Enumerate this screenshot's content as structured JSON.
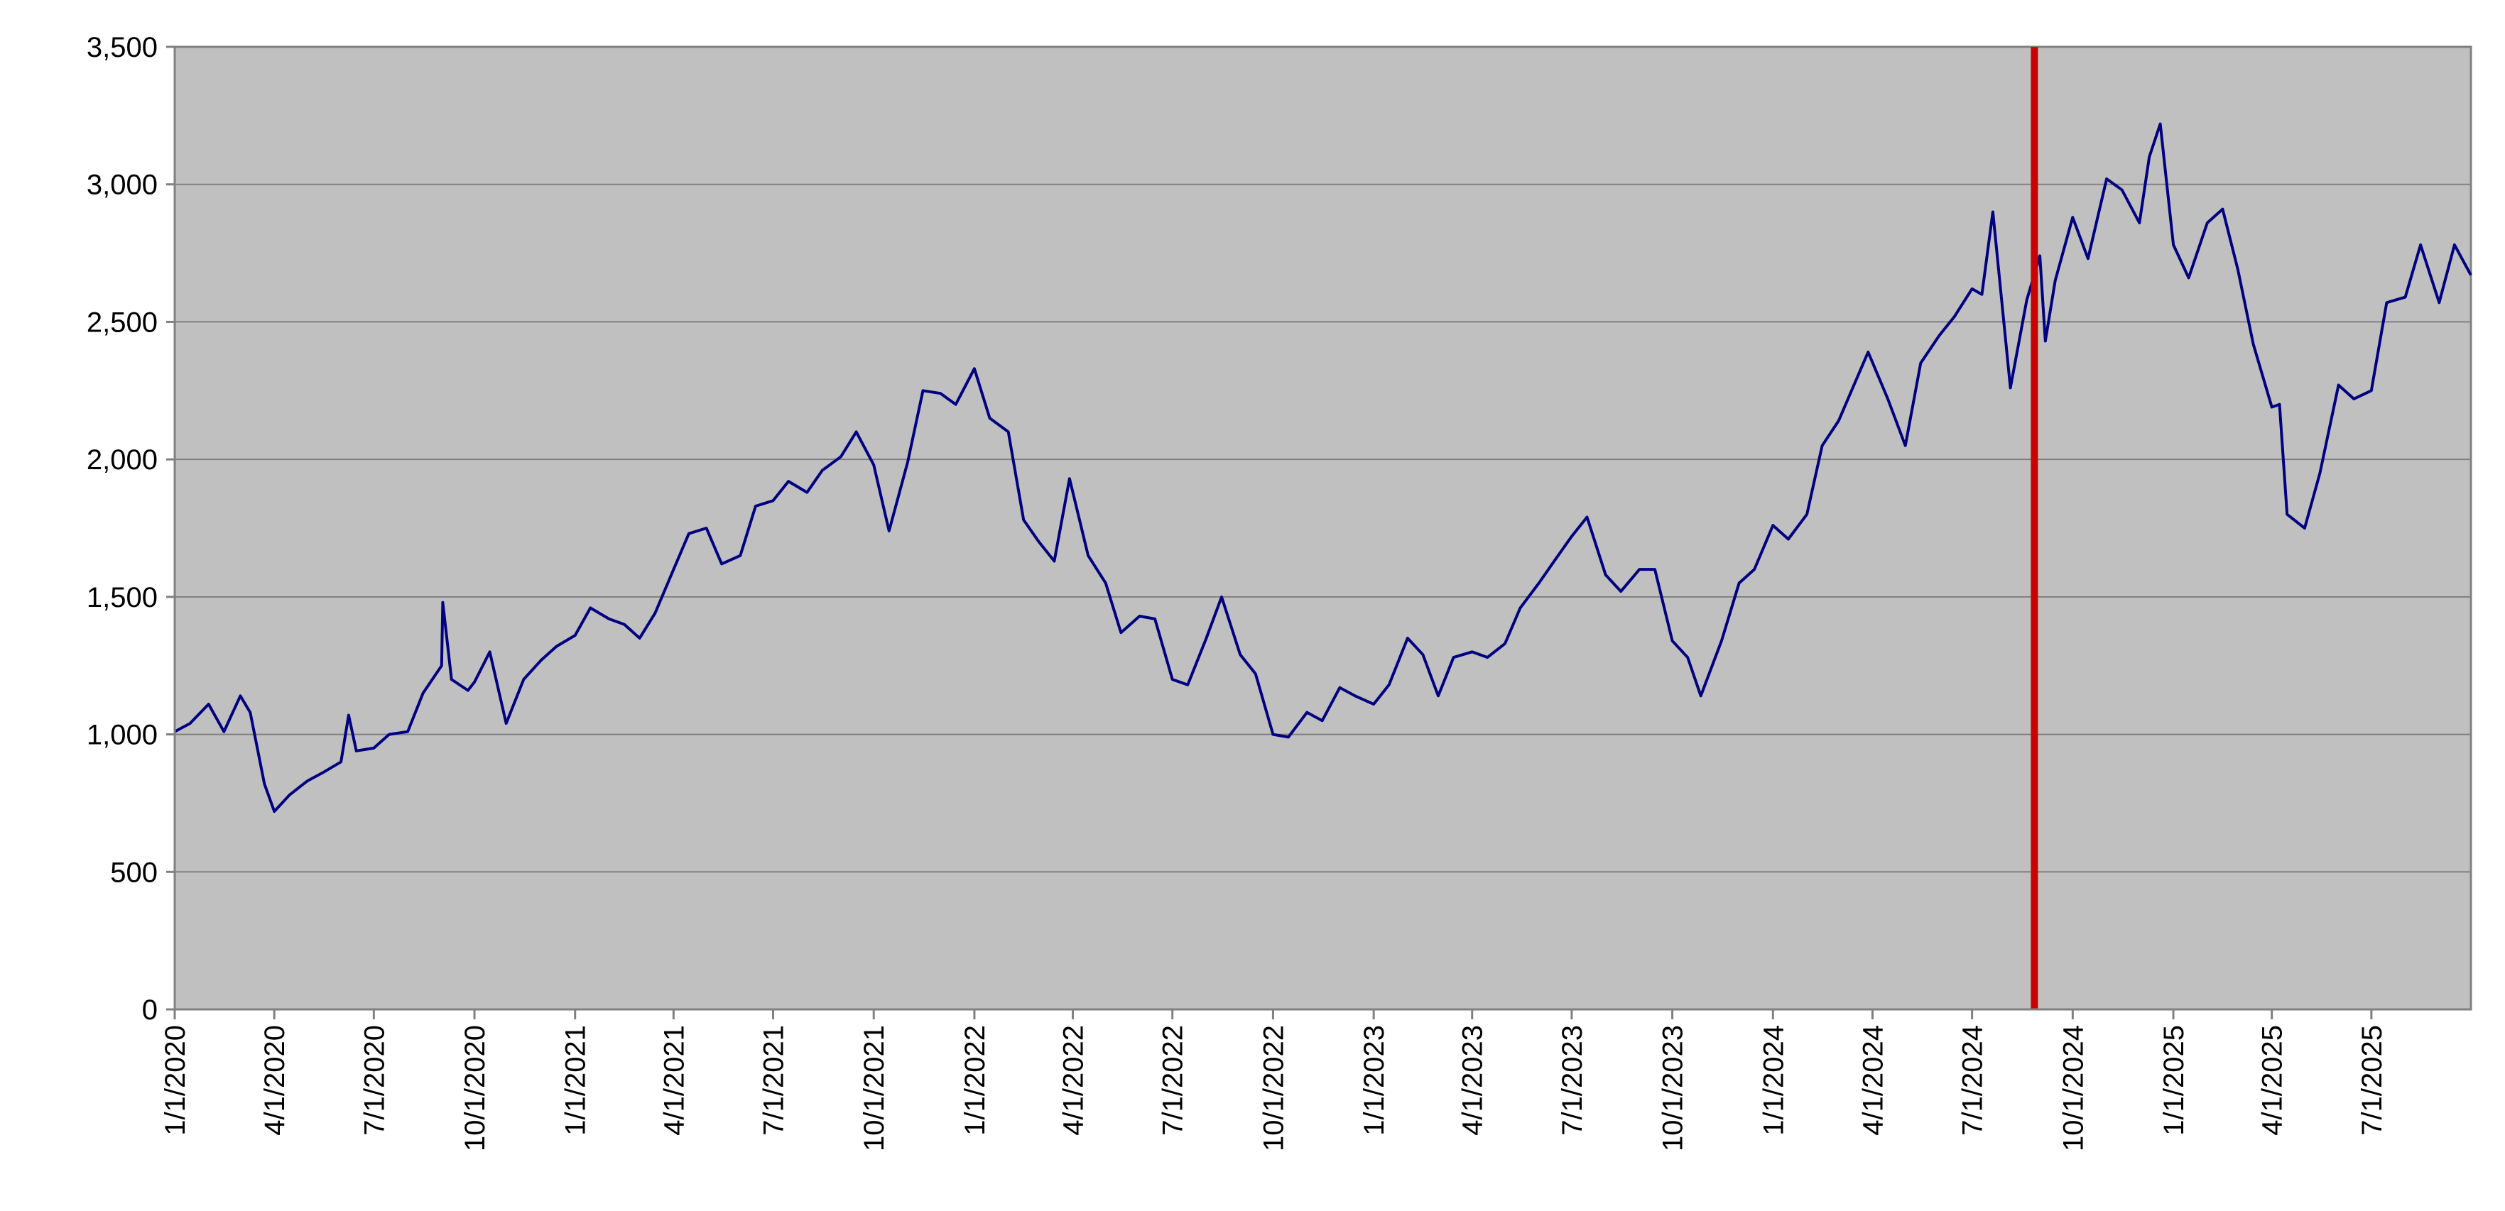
{
  "chart_data": {
    "type": "line",
    "title": "",
    "xlabel": "",
    "ylabel": "",
    "grid": true,
    "legend": "none",
    "xlim": [
      "2020-01-01",
      "2025-09-30"
    ],
    "ylim": [
      0,
      3500
    ],
    "y_ticks": [
      0,
      500,
      1000,
      1500,
      2000,
      2500,
      3000,
      3500
    ],
    "y_tick_labels": [
      "0",
      "500",
      "1,000",
      "1,500",
      "2,000",
      "2,500",
      "3,000",
      "3,500"
    ],
    "x_ticks": [
      "2020-01-01",
      "2020-04-01",
      "2020-07-01",
      "2020-10-01",
      "2021-01-01",
      "2021-04-01",
      "2021-07-01",
      "2021-10-01",
      "2022-01-01",
      "2022-04-01",
      "2022-07-01",
      "2022-10-01",
      "2023-01-01",
      "2023-04-01",
      "2023-07-01",
      "2023-10-01",
      "2024-01-01",
      "2024-04-01",
      "2024-07-01",
      "2024-10-01",
      "2025-01-01",
      "2025-04-01",
      "2025-07-01"
    ],
    "x_tick_labels": [
      "1/1/2020",
      "4/1/2020",
      "7/1/2020",
      "10/1/2020",
      "1/1/2021",
      "4/1/2021",
      "7/1/2021",
      "10/1/2021",
      "1/1/2022",
      "4/1/2022",
      "7/1/2022",
      "10/1/2022",
      "1/1/2023",
      "4/1/2023",
      "7/1/2023",
      "10/1/2023",
      "1/1/2024",
      "4/1/2024",
      "7/1/2024",
      "10/1/2024",
      "1/1/2025",
      "4/1/2025",
      "7/1/2025"
    ],
    "colors": {
      "plot_background": "#c0c0c0",
      "line": "#000080",
      "marker_line": "#cc0000",
      "grid": "#808080"
    },
    "vertical_marker": {
      "x": "2024-08-27"
    },
    "series": [
      {
        "x": [
          "2020-01-01",
          "2020-01-15",
          "2020-02-01",
          "2020-02-15",
          "2020-03-01",
          "2020-03-10",
          "2020-03-23",
          "2020-04-01",
          "2020-04-15",
          "2020-05-01",
          "2020-05-15",
          "2020-06-01",
          "2020-06-08",
          "2020-06-15",
          "2020-07-01",
          "2020-07-15",
          "2020-08-01",
          "2020-08-15",
          "2020-09-01",
          "2020-09-02",
          "2020-09-10",
          "2020-09-25",
          "2020-10-01",
          "2020-10-15",
          "2020-10-30",
          "2020-11-15",
          "2020-12-01",
          "2020-12-15",
          "2021-01-01",
          "2021-01-15",
          "2021-02-01",
          "2021-02-15",
          "2021-03-01",
          "2021-03-15",
          "2021-04-01",
          "2021-04-15",
          "2021-05-01",
          "2021-05-15",
          "2021-06-01",
          "2021-06-15",
          "2021-07-01",
          "2021-07-15",
          "2021-08-01",
          "2021-08-15",
          "2021-09-01",
          "2021-09-15",
          "2021-10-01",
          "2021-10-15",
          "2021-11-01",
          "2021-11-15",
          "2021-12-01",
          "2021-12-15",
          "2022-01-01",
          "2022-01-15",
          "2022-02-01",
          "2022-02-15",
          "2022-03-01",
          "2022-03-15",
          "2022-03-29",
          "2022-04-15",
          "2022-05-01",
          "2022-05-15",
          "2022-06-01",
          "2022-06-15",
          "2022-07-01",
          "2022-07-15",
          "2022-08-01",
          "2022-08-15",
          "2022-09-01",
          "2022-09-15",
          "2022-10-01",
          "2022-10-15",
          "2022-11-01",
          "2022-11-15",
          "2022-12-01",
          "2022-12-15",
          "2023-01-01",
          "2023-01-15",
          "2023-02-01",
          "2023-02-15",
          "2023-03-01",
          "2023-03-15",
          "2023-04-01",
          "2023-04-15",
          "2023-05-01",
          "2023-05-15",
          "2023-06-01",
          "2023-06-15",
          "2023-07-01",
          "2023-07-15",
          "2023-08-01",
          "2023-08-15",
          "2023-09-01",
          "2023-09-15",
          "2023-10-01",
          "2023-10-15",
          "2023-10-27",
          "2023-11-15",
          "2023-12-01",
          "2023-12-15",
          "2024-01-01",
          "2024-01-15",
          "2024-02-01",
          "2024-02-15",
          "2024-03-01",
          "2024-03-15",
          "2024-03-28",
          "2024-04-15",
          "2024-05-01",
          "2024-05-15",
          "2024-06-01",
          "2024-06-15",
          "2024-07-01",
          "2024-07-10",
          "2024-07-20",
          "2024-08-05",
          "2024-08-20",
          "2024-09-01",
          "2024-09-06",
          "2024-09-15",
          "2024-10-01",
          "2024-10-15",
          "2024-11-01",
          "2024-11-15",
          "2024-12-01",
          "2024-12-10",
          "2024-12-20",
          "2025-01-01",
          "2025-01-15",
          "2025-02-01",
          "2025-02-15",
          "2025-03-01",
          "2025-03-15",
          "2025-04-01",
          "2025-04-08",
          "2025-04-15",
          "2025-05-01",
          "2025-05-15",
          "2025-06-01",
          "2025-06-15",
          "2025-07-01",
          "2025-07-15",
          "2025-08-01",
          "2025-08-15",
          "2025-09-01",
          "2025-09-15",
          "2025-09-30"
        ],
        "values": [
          1010,
          1040,
          1110,
          1010,
          1140,
          1080,
          820,
          720,
          780,
          830,
          860,
          900,
          1070,
          940,
          950,
          1000,
          1010,
          1150,
          1250,
          1480,
          1200,
          1160,
          1190,
          1300,
          1040,
          1200,
          1270,
          1320,
          1360,
          1460,
          1420,
          1400,
          1350,
          1440,
          1600,
          1730,
          1750,
          1620,
          1650,
          1830,
          1850,
          1920,
          1880,
          1960,
          2010,
          2100,
          1980,
          1740,
          1990,
          2250,
          2240,
          2200,
          2330,
          2150,
          2100,
          1780,
          1700,
          1630,
          1930,
          1650,
          1550,
          1370,
          1430,
          1420,
          1200,
          1180,
          1350,
          1500,
          1290,
          1220,
          1000,
          990,
          1080,
          1050,
          1170,
          1140,
          1110,
          1180,
          1350,
          1290,
          1140,
          1280,
          1300,
          1280,
          1330,
          1460,
          1550,
          1630,
          1720,
          1790,
          1580,
          1520,
          1600,
          1600,
          1340,
          1280,
          1140,
          1340,
          1550,
          1600,
          1760,
          1710,
          1800,
          2050,
          2140,
          2270,
          2390,
          2220,
          2050,
          2350,
          2450,
          2520,
          2620,
          2600,
          2900,
          2260,
          2580,
          2740,
          2430,
          2650,
          2880,
          2730,
          3020,
          2980,
          2860,
          3100,
          3220,
          2780,
          2660,
          2860,
          2910,
          2690,
          2420,
          2190,
          2200,
          1800,
          1750,
          1950,
          2270,
          2220,
          2250,
          2570,
          2590,
          2780,
          2570,
          2780,
          2670
        ]
      }
    ]
  }
}
